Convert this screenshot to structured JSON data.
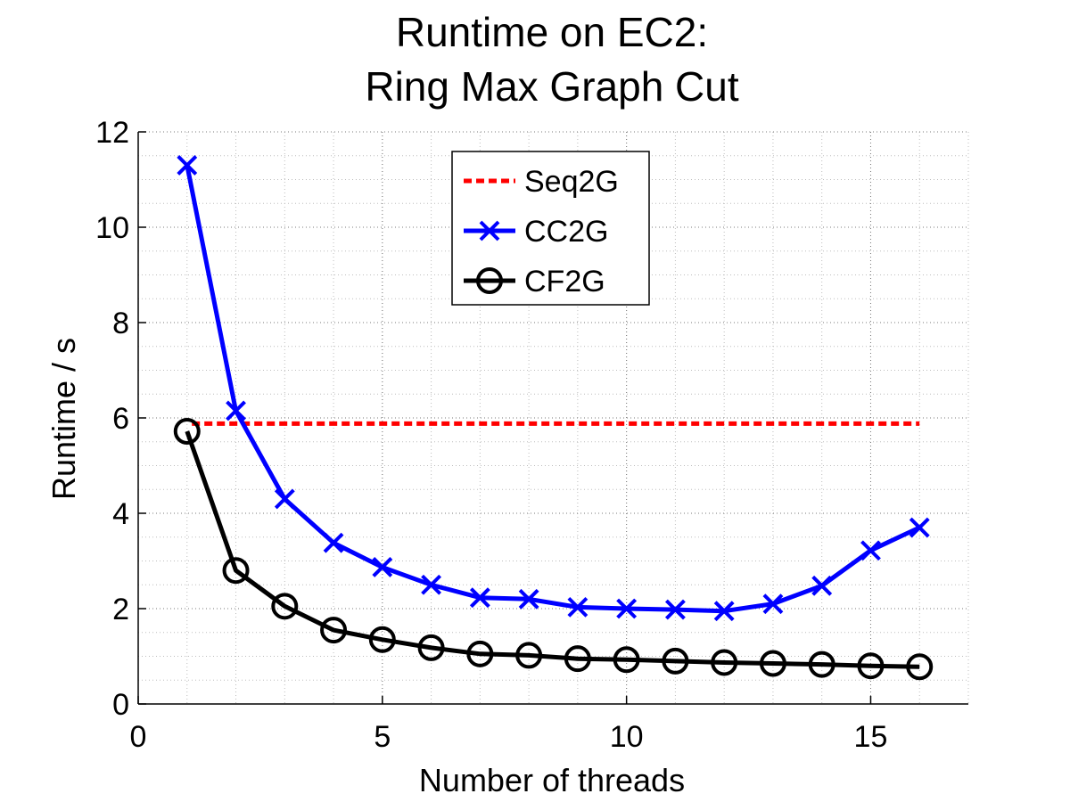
{
  "chart_data": {
    "type": "line",
    "title": [
      "Runtime on EC2:",
      "Ring Max Graph Cut"
    ],
    "xlabel": "Number of threads",
    "ylabel": "Runtime / s",
    "xlim": [
      0,
      17
    ],
    "ylim": [
      0,
      12
    ],
    "xticks": [
      0,
      5,
      10,
      15
    ],
    "yticks": [
      0,
      2,
      4,
      6,
      8,
      10,
      12
    ],
    "grid": true,
    "minor_grid": true,
    "legend_position": "top-center",
    "x": [
      1,
      2,
      3,
      4,
      5,
      6,
      7,
      8,
      9,
      10,
      11,
      12,
      13,
      14,
      15,
      16
    ],
    "series": [
      {
        "name": "Seq2G",
        "color": "#ff0000",
        "style": "dashed",
        "marker": "none",
        "x": [
          1.1,
          16
        ],
        "values": [
          5.88,
          5.88
        ]
      },
      {
        "name": "CC2G",
        "color": "#0000ff",
        "style": "solid",
        "marker": "x",
        "values": [
          11.3,
          6.15,
          4.3,
          3.38,
          2.87,
          2.5,
          2.23,
          2.2,
          2.03,
          2.0,
          1.98,
          1.95,
          2.1,
          2.48,
          3.22,
          3.7
        ]
      },
      {
        "name": "CF2G",
        "color": "#000000",
        "style": "solid",
        "marker": "circle",
        "values": [
          5.72,
          2.8,
          2.05,
          1.55,
          1.35,
          1.18,
          1.05,
          1.02,
          0.95,
          0.93,
          0.9,
          0.87,
          0.85,
          0.83,
          0.8,
          0.78
        ]
      }
    ]
  }
}
